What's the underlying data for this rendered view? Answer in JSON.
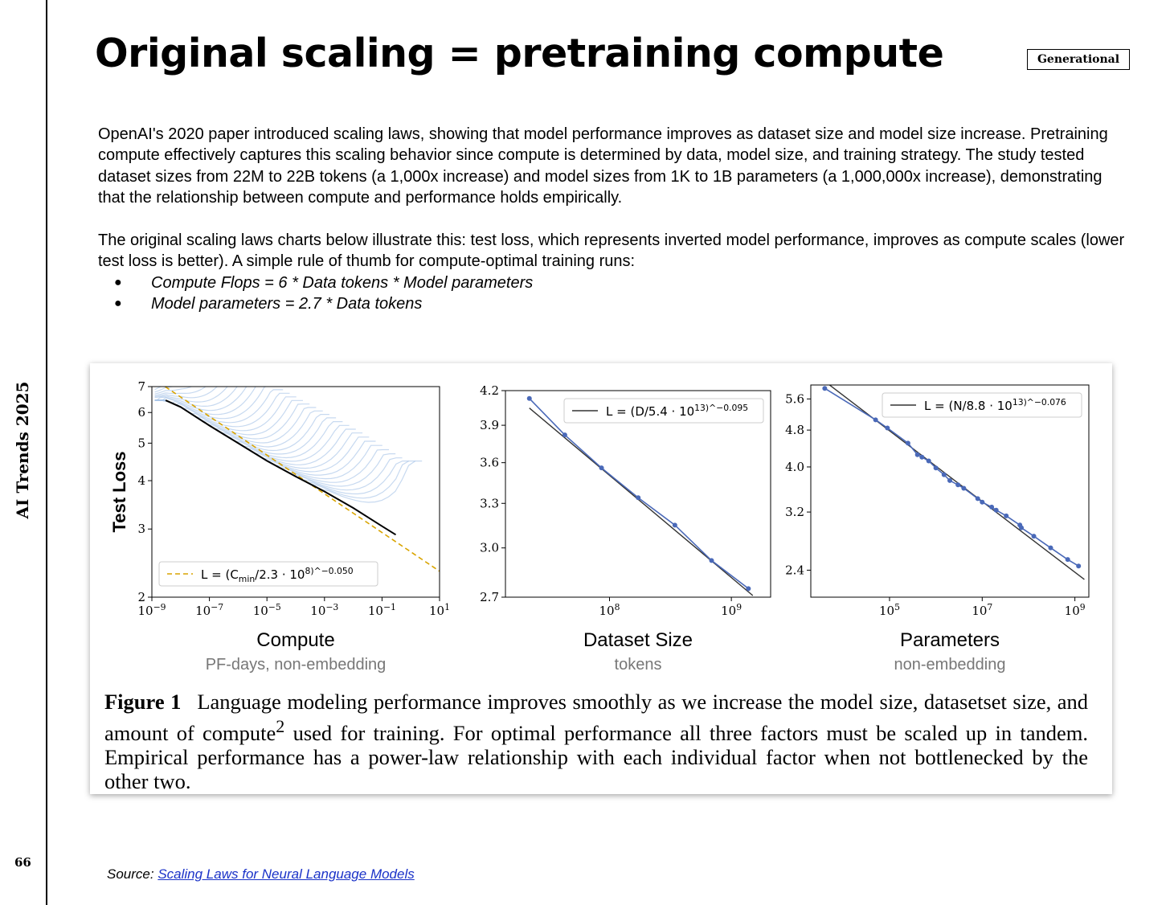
{
  "sidebar": {
    "label": "AI Trends 2025",
    "page_number": "66"
  },
  "header": {
    "title": "Original scaling = pretraining compute",
    "badge": "Generational"
  },
  "body": {
    "paragraph1": "OpenAI's 2020 paper introduced scaling laws, showing that model performance improves as dataset size and model size increase. Pretraining compute effectively captures this scaling behavior since compute is determined by data, model size, and training strategy. The study tested dataset sizes from 22M to 22B tokens (a 1,000x increase) and model sizes from 1K to 1B parameters (a 1,000,000x increase), demonstrating that the relationship between compute and performance holds empirically.",
    "paragraph2": "The original scaling laws charts below illustrate this: test loss, which represents inverted model performance, improves as compute scales (lower test loss is better). A simple rule of thumb for compute-optimal training runs:",
    "bullets": [
      "Compute Flops = 6 * Data tokens * Model parameters",
      "Model parameters = 2.7 * Data tokens"
    ]
  },
  "figure": {
    "caption_label": "Figure 1",
    "caption_text": "Language modeling performance improves smoothly as we increase the model size, datasetset size, and amount of compute",
    "caption_sup": "2",
    "caption_text2": "used for training. For optimal performance all three factors must be scaled up in tandem. Empirical performance has a power-law relationship with each individual factor when not bottlenecked by the other two."
  },
  "source": {
    "label": "Source:",
    "link_text": "Scaling Laws for Neural Language Models"
  },
  "colors": {
    "curve_blue": "#a9c4e8",
    "envelope": "#000000",
    "fit_gold": "#d9a400",
    "point_blue": "#4a69b8",
    "fit_line": "#333333"
  },
  "chart_data": [
    {
      "type": "line",
      "title": "Compute",
      "subtitle": "PF-days, non-embedding",
      "xlabel": "Compute",
      "ylabel": "Test Loss",
      "xscale": "log",
      "yscale": "log",
      "xlim": [
        1e-09,
        10
      ],
      "ylim": [
        2,
        7
      ],
      "x_ticks": [
        "10^-9",
        "10^-7",
        "10^-5",
        "10^-3",
        "10^-1",
        "10^1"
      ],
      "y_ticks": [
        "2",
        "3",
        "4",
        "5",
        "6",
        "7"
      ],
      "legend": {
        "label": "L = (C_min/2.3 · 10^8)^-0.050",
        "position": "bottom-left"
      },
      "fit": {
        "form": "power_law",
        "c": 230000000.0,
        "alpha": 0.05,
        "x_range": [
          1e-09,
          10
        ]
      },
      "envelope": {
        "name": "compute-efficient frontier",
        "x": [
          3e-09,
          1e-08,
          1e-07,
          1e-06,
          1e-05,
          0.0001,
          0.001,
          0.01,
          0.1,
          0.3
        ],
        "y": [
          6.45,
          6.2,
          5.55,
          5.0,
          4.5,
          4.1,
          3.75,
          3.4,
          3.05,
          2.9
        ]
      },
      "series_note": "Individual training-run learning curves drawn as light blue lines"
    },
    {
      "type": "line",
      "title": "Dataset Size",
      "subtitle": "tokens",
      "xlabel": "Dataset Size",
      "ylabel": "",
      "xscale": "log",
      "yscale": "log",
      "xlim": [
        14000000.0,
        2100000000.0
      ],
      "ylim": [
        2.7,
        4.2
      ],
      "x_ticks": [
        "10^8",
        "10^9"
      ],
      "y_ticks": [
        "2.7",
        "3.0",
        "3.3",
        "3.6",
        "3.9",
        "4.2"
      ],
      "legend": {
        "label": "L = (D/5.4 · 10^13)^-0.095",
        "position": "top-right"
      },
      "fit": {
        "form": "power_law",
        "c": 54000000000000.0,
        "alpha": 0.095,
        "x_range": [
          22000000.0,
          1500000000.0
        ]
      },
      "points": {
        "x": [
          22000000.0,
          43000000.0,
          86000000.0,
          172000000.0,
          344000000.0,
          688000000.0,
          1380000000.0
        ],
        "y": [
          4.13,
          3.82,
          3.56,
          3.34,
          3.15,
          2.92,
          2.75
        ]
      }
    },
    {
      "type": "line",
      "title": "Parameters",
      "subtitle": "non-embedding",
      "xlabel": "Parameters",
      "ylabel": "",
      "xscale": "log",
      "yscale": "log",
      "xlim": [
        2000.0,
        2000000000.0
      ],
      "ylim": [
        2.1,
        6.0
      ],
      "x_ticks": [
        "10^5",
        "10^7",
        "10^9"
      ],
      "y_ticks": [
        "2.4",
        "3.2",
        "4.0",
        "4.8",
        "5.6"
      ],
      "legend": {
        "label": "L = (N/8.8 · 10^13)^-0.076",
        "position": "top-right"
      },
      "fit": {
        "form": "power_law",
        "c": 88000000000000.0,
        "alpha": 0.076,
        "x_range": [
          4000.0,
          1600000000.0
        ]
      },
      "points": {
        "x": [
          4000.0,
          50000.0,
          90000.0,
          250000.0,
          400000.0,
          500000.0,
          700000.0,
          1000000.0,
          1500000.0,
          2000000.0,
          3000000.0,
          4000000.0,
          8000000.0,
          10000000.0,
          16000000.0,
          20000000.0,
          33000000.0,
          65000000.0,
          70000000.0,
          130000000.0,
          300000000.0,
          700000000.0,
          1200000000.0
        ],
        "y": [
          5.9,
          5.05,
          4.85,
          4.5,
          4.25,
          4.2,
          4.12,
          3.98,
          3.85,
          3.74,
          3.66,
          3.6,
          3.42,
          3.36,
          3.28,
          3.23,
          3.14,
          3.0,
          2.96,
          2.84,
          2.68,
          2.53,
          2.45
        ]
      }
    }
  ]
}
